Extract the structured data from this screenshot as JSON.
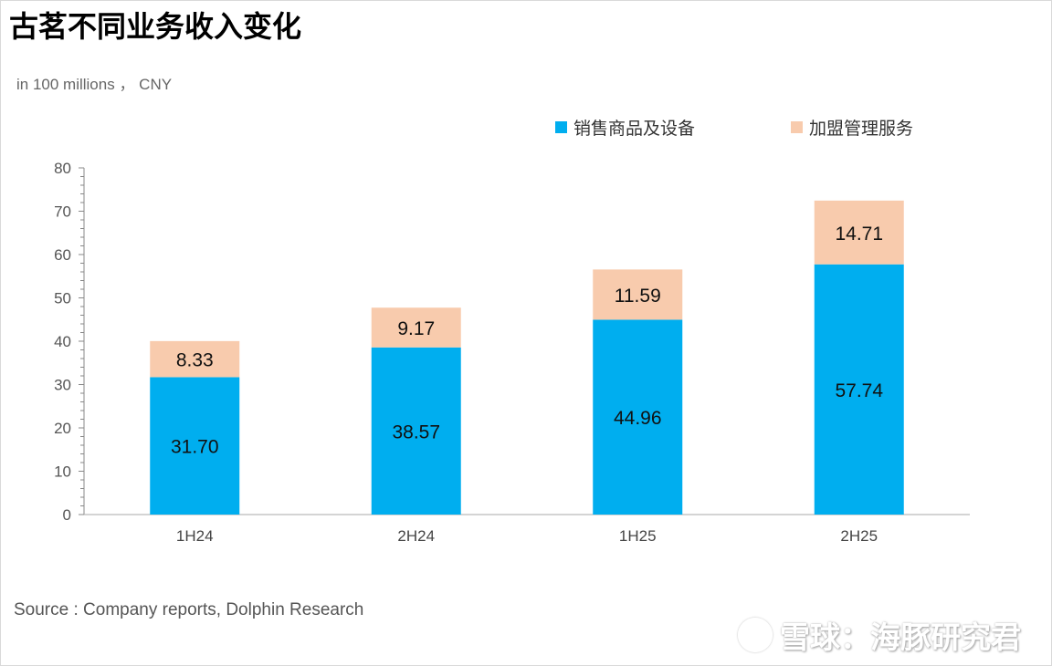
{
  "header": {
    "title": "古茗不同业务收入变化",
    "unit": "in 100 millions ， CNY"
  },
  "footer": {
    "source": "Source : Company reports, Dolphin Research",
    "brand": "雪球：海豚研究君"
  },
  "colors": {
    "series_1": "#00aeef",
    "series_2": "#f8cbad"
  },
  "chart_data": {
    "type": "bar",
    "stacked": true,
    "title": "古茗不同业务收入变化",
    "ylabel": "in 100 millions ， CNY",
    "xlabel": "",
    "ylim": [
      0,
      80
    ],
    "yticks": [
      0,
      10,
      20,
      30,
      40,
      50,
      60,
      70,
      80
    ],
    "categories": [
      "1H24",
      "2H24",
      "1H25",
      "2H25"
    ],
    "series": [
      {
        "name": "销售商品及设备",
        "values": [
          31.7,
          38.57,
          44.96,
          57.74
        ],
        "labels": [
          "31.70",
          "38.57",
          "44.96",
          "57.74"
        ]
      },
      {
        "name": "加盟管理服务",
        "values": [
          8.33,
          9.17,
          11.59,
          14.71
        ],
        "labels": [
          "8.33",
          "9.17",
          "11.59",
          "14.71"
        ]
      }
    ],
    "legend_position": "top-right",
    "grid": false
  }
}
